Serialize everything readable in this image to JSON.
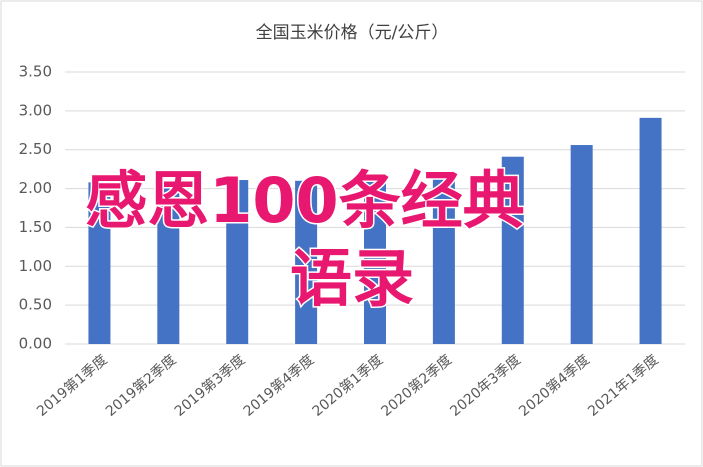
{
  "chart_data": {
    "type": "bar",
    "title": "全国玉米价格（元/公斤）",
    "categories": [
      "2019第1季度",
      "2019第2季度",
      "2019第3季度",
      "2019第4季度",
      "2020第1季度",
      "2020第2季度",
      "2020年3季度",
      "2020第4季度",
      "2021年1季度"
    ],
    "values": [
      2.08,
      2.05,
      2.11,
      2.1,
      2.1,
      2.19,
      2.41,
      2.56,
      2.91
    ],
    "color": "#4472c4",
    "ylim": [
      0,
      3.5
    ],
    "yticks": [
      {
        "value": 0,
        "label": "0.00"
      },
      {
        "value": 0.5,
        "label": "0.50"
      },
      {
        "value": 1,
        "label": "1.00"
      },
      {
        "value": 1.5,
        "label": "1.50"
      },
      {
        "value": 2,
        "label": "2.00"
      },
      {
        "value": 2.5,
        "label": "2.50"
      },
      {
        "value": 3,
        "label": "3.00"
      },
      {
        "value": 3.5,
        "label": "3.50"
      }
    ],
    "grid": true
  },
  "overlay_text": [
    "感恩100条经典",
    "语录"
  ]
}
